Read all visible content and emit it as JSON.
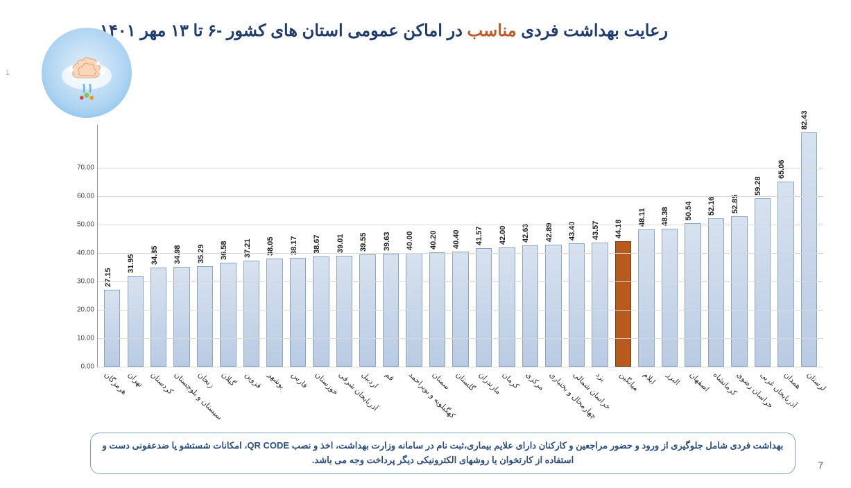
{
  "title": {
    "part1": "رعایت بهداشت فردی ",
    "highlight": "مناسب",
    "part2": " در اماکن عمومی استان های کشور -۶ تا ۱۳ مهر ۱۴۰۱"
  },
  "chart": {
    "type": "bar",
    "ylim": [
      0,
      85
    ],
    "ytick_step": 10,
    "yticks": [
      "0.00",
      "10.00",
      "20.00",
      "30.00",
      "40.00",
      "50.00",
      "60.00",
      "70.00"
    ],
    "grid_color": "#d8d8d8",
    "bar_fill": "#b9cbe3",
    "bar_border": "#8ea5c2",
    "highlight_fill": "#b75a1d",
    "background_color": "#ffffff",
    "value_fontsize": 11,
    "label_fontsize": 11,
    "categories": [
      "هرمزگان",
      "تهران",
      "کردستان",
      "سیستان و بلوچستان",
      "زنجان",
      "گیلان",
      "قزوین",
      "بوشهر",
      "فارس",
      "خوزستان",
      "آذربایجان شرقی",
      "اردبیل",
      "قم",
      "کهگیلویه و بویراحمد",
      "سمنان",
      "گلستان",
      "مازندران",
      "کرمان",
      "مرکزی",
      "چهارمحال و بختیاری",
      "خراسان شمالی",
      "یزد",
      "میانگین",
      "ایلام",
      "البرز",
      "اصفهان",
      "کرمانشاه",
      "خراسان رضوی",
      "آذربایجان غربی",
      "همدان",
      "لرستان"
    ],
    "values": [
      27.15,
      31.95,
      34.85,
      34.98,
      35.29,
      36.58,
      37.21,
      38.05,
      38.17,
      38.67,
      39.01,
      39.55,
      39.63,
      40.0,
      40.2,
      40.4,
      41.57,
      42.0,
      42.63,
      42.89,
      43.4,
      43.57,
      44.18,
      48.11,
      48.38,
      50.54,
      52.16,
      52.85,
      59.28,
      65.06,
      82.43
    ],
    "highlight_index": 22
  },
  "footnote": "بهداشت فردی شامل جلوگیری از ورود و حضور مراجعین و کارکنان دارای علایم بیماری،ثبت نام در سامانه وزارت بهداشت، اخذ و نصب QR CODE، امکانات شستشو یا ضدعفونی دست و استفاده از کارتخوان یا روشهای الکترونیکی دیگر پرداخت وجه می باشد.",
  "page_number": "7",
  "side_number": "1",
  "icon_name": "handwashing-icon"
}
